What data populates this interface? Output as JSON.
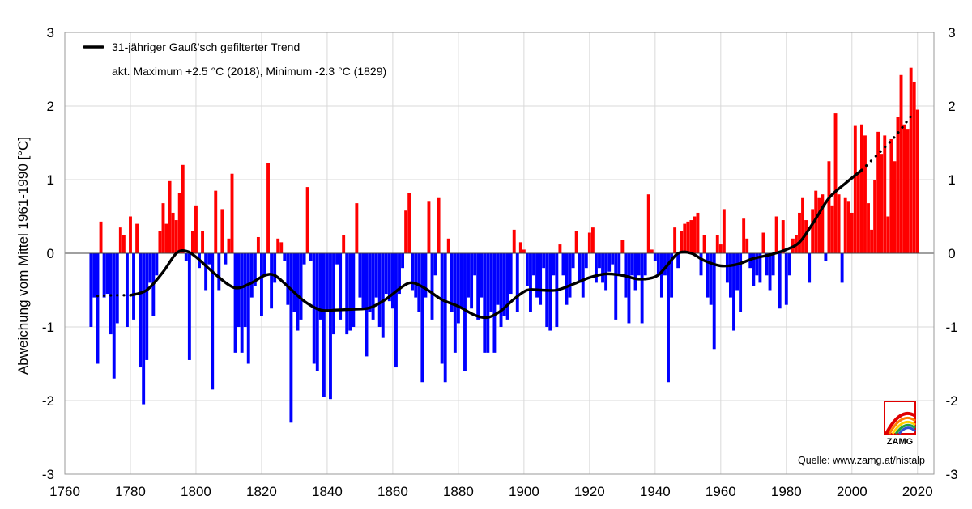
{
  "chart_data": {
    "type": "bar",
    "ylabel": "Abweichung vom Mittel 1961-1990 [°C]",
    "xlim": [
      1760,
      2025
    ],
    "ylim": [
      -3,
      3
    ],
    "x_ticks": [
      1760,
      1780,
      1800,
      1820,
      1840,
      1860,
      1880,
      1900,
      1920,
      1940,
      1960,
      1980,
      2000,
      2020
    ],
    "y_ticks": [
      -3,
      -2,
      -1,
      0,
      1,
      2,
      3
    ],
    "grid": true,
    "legend_position": "top-left",
    "colors": {
      "positive": "#ff0000",
      "negative": "#0000ff",
      "trend": "#000000"
    },
    "legend": {
      "trend_label": "31-jähriger Gauß'sch gefilterter Trend",
      "extremes_note": "akt. Maximum +2.5 °C (2018), Minimum -2.3 °C (1829)"
    },
    "source": "Quelle: www.zamg.at/histalp",
    "logo_text": "ZAMG",
    "years_start": 1768,
    "values": [
      -1.0,
      -0.6,
      -1.5,
      0.43,
      -0.6,
      -0.55,
      -1.1,
      -1.7,
      -0.95,
      0.35,
      0.25,
      -1.0,
      0.5,
      -0.9,
      0.4,
      -1.55,
      -2.05,
      -1.45,
      -0.4,
      -0.85,
      -0.3,
      0.3,
      0.68,
      0.4,
      0.98,
      0.55,
      0.45,
      0.82,
      1.2,
      -0.1,
      -1.45,
      0.3,
      0.65,
      -0.2,
      0.3,
      -0.5,
      -0.15,
      -1.85,
      0.85,
      -0.5,
      0.6,
      -0.15,
      0.2,
      1.08,
      -1.35,
      -1.0,
      -1.35,
      -1.0,
      -1.5,
      -0.6,
      -0.45,
      0.22,
      -0.85,
      -0.3,
      1.23,
      -0.75,
      -0.4,
      0.2,
      0.15,
      -0.1,
      -0.7,
      -2.3,
      -0.8,
      -1.05,
      -0.9,
      -0.15,
      0.9,
      -0.1,
      -1.5,
      -1.6,
      -0.9,
      -1.95,
      -0.8,
      -1.98,
      -1.1,
      -0.15,
      -0.9,
      0.25,
      -1.1,
      -1.05,
      -1.0,
      0.68,
      -0.6,
      -0.75,
      -1.4,
      -0.8,
      -0.9,
      -0.6,
      -1.0,
      -1.15,
      -0.55,
      -0.65,
      -0.75,
      -1.55,
      -0.55,
      -0.2,
      0.58,
      0.82,
      -0.5,
      -0.6,
      -0.8,
      -1.75,
      -0.6,
      0.7,
      -0.9,
      -0.3,
      0.75,
      -1.5,
      -1.75,
      0.2,
      -0.8,
      -1.35,
      -0.95,
      -0.75,
      -1.6,
      -0.6,
      -0.75,
      -0.3,
      -0.9,
      -0.6,
      -1.35,
      -1.35,
      -0.8,
      -1.35,
      -0.7,
      -1.0,
      -0.85,
      -0.9,
      -0.55,
      0.32,
      -0.8,
      0.15,
      0.05,
      -0.45,
      -0.8,
      -0.3,
      -0.6,
      -0.7,
      -0.2,
      -1.0,
      -1.05,
      -0.3,
      -1.0,
      0.12,
      -0.3,
      -0.7,
      -0.6,
      -0.2,
      0.3,
      -0.4,
      -0.6,
      -0.2,
      0.28,
      0.35,
      -0.4,
      -0.2,
      -0.4,
      -0.5,
      -0.25,
      -0.15,
      -0.9,
      -0.3,
      0.18,
      -0.6,
      -0.95,
      -0.3,
      -0.5,
      -0.3,
      -0.95,
      -0.3,
      0.8,
      0.05,
      -0.1,
      -0.3,
      -0.6,
      -0.3,
      -1.75,
      -0.6,
      0.35,
      -0.2,
      0.3,
      0.4,
      0.43,
      0.45,
      0.5,
      0.55,
      -0.3,
      0.25,
      -0.6,
      -0.7,
      -1.3,
      0.25,
      0.12,
      0.6,
      -0.4,
      -0.6,
      -1.05,
      -0.5,
      -0.8,
      0.47,
      0.2,
      -0.2,
      -0.45,
      -0.3,
      -0.4,
      0.28,
      -0.3,
      -0.5,
      -0.3,
      0.5,
      -0.75,
      0.45,
      -0.7,
      -0.3,
      0.2,
      0.25,
      0.55,
      0.75,
      0.45,
      -0.4,
      0.6,
      0.85,
      0.75,
      0.8,
      -0.1,
      1.25,
      0.65,
      1.9,
      0.8,
      -0.4,
      0.75,
      0.7,
      0.55,
      1.73,
      1.1,
      1.75,
      1.6,
      0.68,
      0.32,
      1.0,
      1.65,
      1.35,
      1.6,
      0.5,
      1.55,
      1.25,
      1.85,
      2.42,
      1.75,
      1.68,
      2.52,
      2.33,
      1.95
    ],
    "trend": [
      [
        1770,
        -0.58
      ],
      [
        1775,
        -0.57
      ],
      [
        1780,
        -0.57
      ],
      [
        1785,
        -0.5
      ],
      [
        1790,
        -0.25
      ],
      [
        1794,
        0.0
      ],
      [
        1797,
        0.03
      ],
      [
        1800,
        -0.05
      ],
      [
        1805,
        -0.25
      ],
      [
        1810,
        -0.43
      ],
      [
        1813,
        -0.47
      ],
      [
        1817,
        -0.4
      ],
      [
        1821,
        -0.3
      ],
      [
        1824,
        -0.3
      ],
      [
        1828,
        -0.45
      ],
      [
        1833,
        -0.65
      ],
      [
        1838,
        -0.77
      ],
      [
        1843,
        -0.77
      ],
      [
        1848,
        -0.76
      ],
      [
        1853,
        -0.74
      ],
      [
        1858,
        -0.62
      ],
      [
        1863,
        -0.45
      ],
      [
        1866,
        -0.4
      ],
      [
        1870,
        -0.48
      ],
      [
        1875,
        -0.63
      ],
      [
        1880,
        -0.72
      ],
      [
        1885,
        -0.84
      ],
      [
        1889,
        -0.87
      ],
      [
        1893,
        -0.78
      ],
      [
        1897,
        -0.62
      ],
      [
        1901,
        -0.5
      ],
      [
        1905,
        -0.5
      ],
      [
        1910,
        -0.5
      ],
      [
        1915,
        -0.42
      ],
      [
        1920,
        -0.33
      ],
      [
        1925,
        -0.28
      ],
      [
        1930,
        -0.3
      ],
      [
        1935,
        -0.35
      ],
      [
        1940,
        -0.32
      ],
      [
        1943,
        -0.2
      ],
      [
        1947,
        0.0
      ],
      [
        1951,
        0.0
      ],
      [
        1955,
        -0.1
      ],
      [
        1960,
        -0.17
      ],
      [
        1965,
        -0.15
      ],
      [
        1970,
        -0.07
      ],
      [
        1975,
        -0.02
      ],
      [
        1980,
        0.05
      ],
      [
        1984,
        0.15
      ],
      [
        1988,
        0.4
      ],
      [
        1993,
        0.75
      ],
      [
        1998,
        0.95
      ],
      [
        2003,
        1.13
      ],
      [
        2008,
        1.35
      ],
      [
        2013,
        1.58
      ],
      [
        2019,
        1.92
      ]
    ],
    "trend_solid_range": [
      1783,
      2005
    ]
  }
}
